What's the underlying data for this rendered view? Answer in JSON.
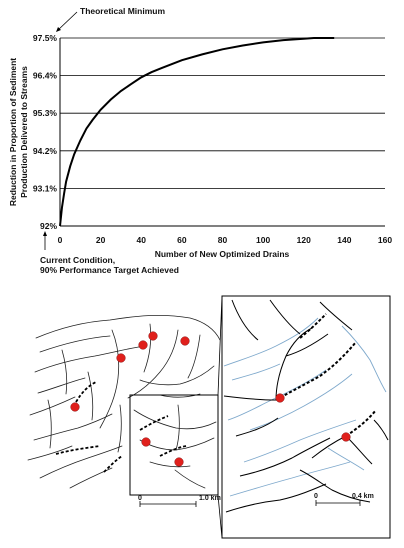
{
  "chart_data": {
    "type": "line",
    "title": "",
    "xlabel": "Number of New Optimized Drains",
    "ylabel_line1": "Reduction in Proportion of Sediment",
    "ylabel_line2": "Production Delivered to Streams",
    "xlim": [
      0,
      160
    ],
    "ylim": [
      92,
      97.5
    ],
    "x_ticks": [
      "0",
      "20",
      "40",
      "60",
      "80",
      "100",
      "120",
      "140",
      "160"
    ],
    "y_ticks": [
      "92%",
      "93.1%",
      "94.2%",
      "95.3%",
      "96.4%",
      "97.5%"
    ],
    "grid": "horizontal",
    "series": [
      {
        "x": [
          0,
          1,
          2,
          3,
          5,
          7,
          10,
          13,
          16,
          20,
          25,
          30,
          35,
          40,
          45,
          50,
          60,
          70,
          80,
          90,
          100,
          110,
          120,
          125,
          130,
          135
        ],
        "y": [
          92.0,
          92.55,
          92.95,
          93.3,
          93.75,
          94.1,
          94.5,
          94.85,
          95.1,
          95.4,
          95.7,
          95.95,
          96.15,
          96.35,
          96.5,
          96.62,
          96.85,
          97.02,
          97.17,
          97.28,
          97.37,
          97.44,
          97.48,
          97.5,
          97.5,
          97.5
        ]
      }
    ],
    "annotations": {
      "top": "Theoretical Minimum",
      "bottom_line1": "Current Condition,",
      "bottom_line2": "90% Performance Target Achieved"
    }
  },
  "map": {
    "scale_left": {
      "zero": "0",
      "end": "1.0 km"
    },
    "scale_inset": {
      "zero": "0",
      "end": "0.4 km"
    },
    "colors": {
      "marker": "#e0201c",
      "stream": "#7fa9cc",
      "road": "#000000"
    }
  }
}
